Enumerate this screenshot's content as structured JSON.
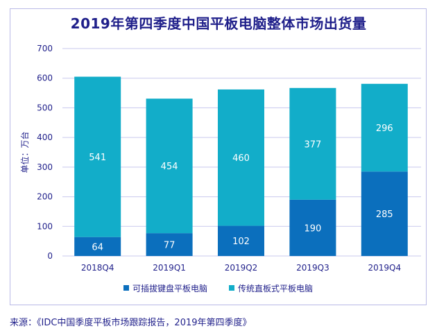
{
  "chart_data": {
    "type": "bar",
    "stacked": true,
    "title": "2019年第四季度中国平板电脑整体市场出货量",
    "ylabel": "单位：万台",
    "xlabel": "",
    "categories": [
      "2018Q4",
      "2019Q1",
      "2019Q2",
      "2019Q3",
      "2019Q4"
    ],
    "series": [
      {
        "name": "可插拔键盘平板电脑",
        "color": "#0b6fbd",
        "values": [
          64,
          77,
          102,
          190,
          285
        ]
      },
      {
        "name": "传统直板式平板电脑",
        "color": "#12adc9",
        "values": [
          541,
          454,
          460,
          377,
          296
        ]
      }
    ],
    "ylim": [
      0,
      700
    ],
    "yticks": [
      0,
      100,
      200,
      300,
      400,
      500,
      600,
      700
    ],
    "grid": true,
    "legend": "bottom"
  },
  "source": "来源：《IDC中国季度平板市场跟踪报告，2019年第四季度》",
  "colors": {
    "title": "#1f1f8a",
    "axis_text": "#1f1f8a",
    "grid": "#c8c8ee",
    "label_text": "#ffffff"
  }
}
